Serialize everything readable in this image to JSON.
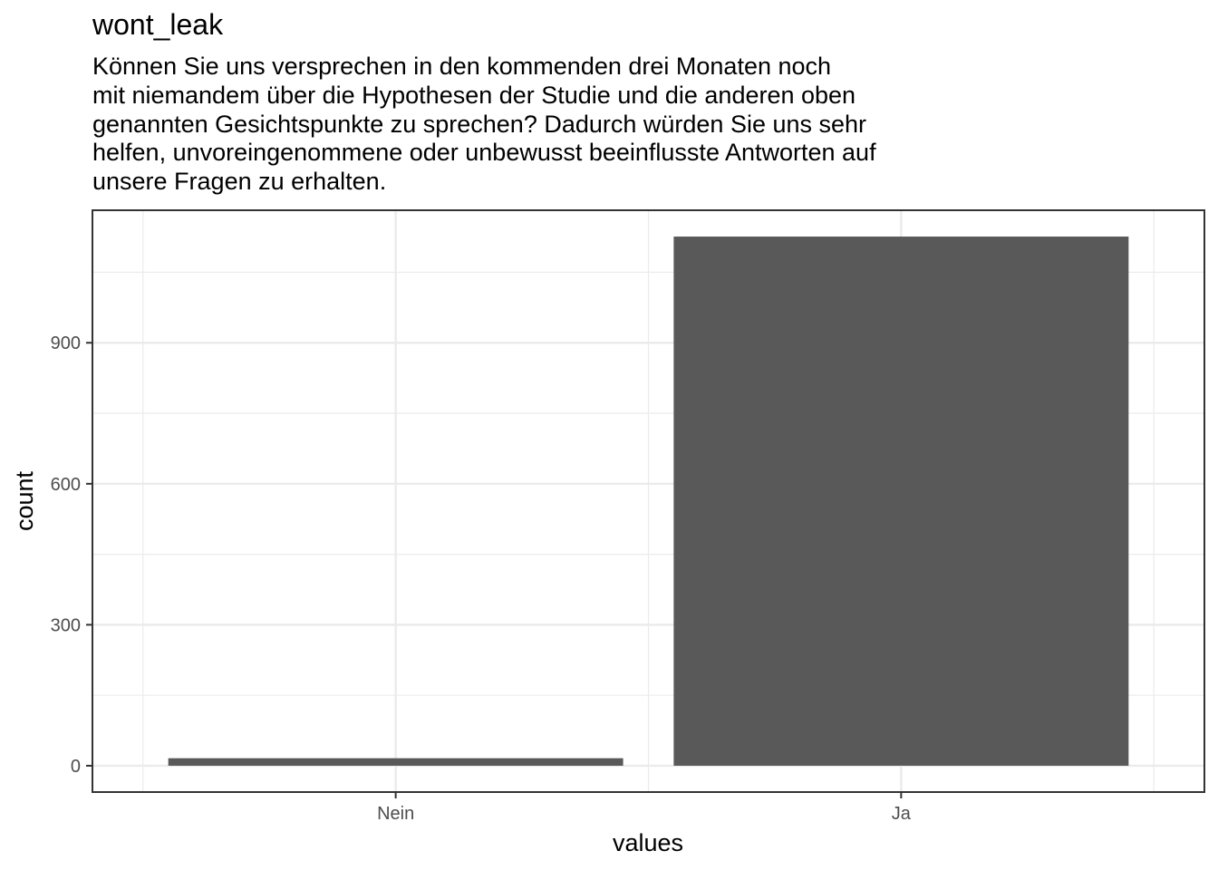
{
  "chart_data": {
    "type": "bar",
    "title": "wont_leak",
    "subtitle": "Können Sie uns versprechen in den kommenden drei Monaten noch\nmit niemandem über die Hypothesen der Studie und die anderen oben\ngenannten Gesichtspunkte zu sprechen? Dadurch würden Sie uns sehr\nhelfen, unvoreingenommene oder unbewusst beeinflusste Antworten auf\nunsere Fragen zu erhalten.",
    "xlabel": "values",
    "ylabel": "count",
    "categories": [
      "Nein",
      "Ja"
    ],
    "values": [
      16,
      1126
    ],
    "ylim": [
      -56,
      1182
    ],
    "yticks": [
      0,
      300,
      600,
      900
    ],
    "grid": true,
    "bar_color": "#595959"
  }
}
